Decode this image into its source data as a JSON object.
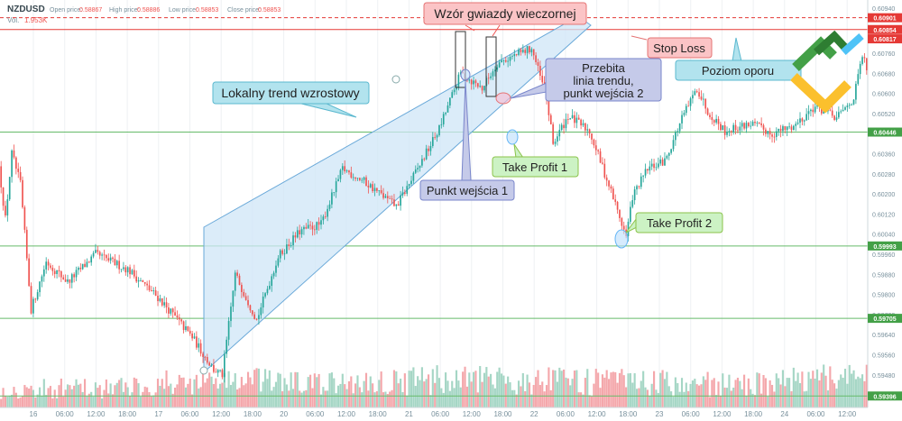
{
  "header": {
    "symbol": "NZDUSD",
    "open_label": "Open price:",
    "open_value": "0.58867",
    "high_label": "High price:",
    "high_value": "0.58886",
    "low_label": "Low price:",
    "low_value": "0.58853",
    "close_label": "Close price:",
    "close_value": "0.58853",
    "vol_label": "Vol.",
    "vol_value": "1.953K"
  },
  "colors": {
    "bull": "#26a69a",
    "bear": "#ef5350",
    "vol_bull": "#a5d6c5",
    "vol_bear": "#f4a7ab",
    "level_line": "#66bb6a",
    "level_tag": "#43a047",
    "stop_line": "#e53935",
    "stop_tag": "#e53935",
    "channel_fill": "#cfe6f7",
    "channel_stroke": "#6aa9d9"
  },
  "chart_data": {
    "type": "candlestick",
    "symbol": "NZDUSD",
    "ylim": [
      0.59336,
      0.6095
    ],
    "y_ticks": [
      "0.60940",
      "0.60847",
      "0.60760",
      "0.60680",
      "0.60600",
      "0.60520",
      "0.60440",
      "0.60360",
      "0.60280",
      "0.60200",
      "0.60120",
      "0.60040",
      "0.59960",
      "0.59880",
      "0.59800",
      "0.59720",
      "0.59640",
      "0.59560",
      "0.59480",
      "0.59400"
    ],
    "x_ticks": [
      "16",
      "06:00",
      "12:00",
      "18:00",
      "17",
      "06:00",
      "12:00",
      "18:00",
      "20",
      "06:00",
      "12:00",
      "18:00",
      "21",
      "06:00",
      "12:00",
      "18:00",
      "22",
      "06:00",
      "12:00",
      "18:00",
      "23",
      "06:00",
      "12:00",
      "18:00",
      "24",
      "06:00",
      "12:00"
    ],
    "price_levels": [
      {
        "value": "0.60901",
        "kind": "stop"
      },
      {
        "value": "0.60854",
        "kind": "stop"
      },
      {
        "value": "0.60817",
        "kind": "tag"
      },
      {
        "value": "0.60446",
        "kind": "support"
      },
      {
        "value": "0.59993",
        "kind": "support"
      },
      {
        "value": "0.59705",
        "kind": "support"
      },
      {
        "value": "0.59396",
        "kind": "support"
      }
    ],
    "price_path": [
      {
        "t": 0,
        "p": 0.6031
      },
      {
        "t": 3,
        "p": 0.601
      },
      {
        "t": 6,
        "p": 0.6036
      },
      {
        "t": 10,
        "p": 0.6024
      },
      {
        "t": 15,
        "p": 0.5974
      },
      {
        "t": 22,
        "p": 0.5993
      },
      {
        "t": 32,
        "p": 0.5985
      },
      {
        "t": 45,
        "p": 0.5996
      },
      {
        "t": 60,
        "p": 0.599
      },
      {
        "t": 75,
        "p": 0.5978
      },
      {
        "t": 90,
        "p": 0.5963
      },
      {
        "t": 100,
        "p": 0.595
      },
      {
        "t": 104,
        "p": 0.5948
      },
      {
        "t": 110,
        "p": 0.5988
      },
      {
        "t": 120,
        "p": 0.597
      },
      {
        "t": 130,
        "p": 0.5995
      },
      {
        "t": 140,
        "p": 0.6005
      },
      {
        "t": 150,
        "p": 0.6008
      },
      {
        "t": 160,
        "p": 0.603
      },
      {
        "t": 170,
        "p": 0.6025
      },
      {
        "t": 185,
        "p": 0.6015
      },
      {
        "t": 195,
        "p": 0.603
      },
      {
        "t": 205,
        "p": 0.6046
      },
      {
        "t": 215,
        "p": 0.6068
      },
      {
        "t": 225,
        "p": 0.6062
      },
      {
        "t": 232,
        "p": 0.6072
      },
      {
        "t": 240,
        "p": 0.6075
      },
      {
        "t": 248,
        "p": 0.6078
      },
      {
        "t": 255,
        "p": 0.6058
      },
      {
        "t": 258,
        "p": 0.604
      },
      {
        "t": 265,
        "p": 0.6051
      },
      {
        "t": 275,
        "p": 0.6045
      },
      {
        "t": 285,
        "p": 0.6021
      },
      {
        "t": 292,
        "p": 0.6003
      },
      {
        "t": 295,
        "p": 0.6019
      },
      {
        "t": 302,
        "p": 0.603
      },
      {
        "t": 310,
        "p": 0.6033
      },
      {
        "t": 318,
        "p": 0.605
      },
      {
        "t": 325,
        "p": 0.6062
      },
      {
        "t": 330,
        "p": 0.6053
      },
      {
        "t": 338,
        "p": 0.6045
      },
      {
        "t": 350,
        "p": 0.6048
      },
      {
        "t": 360,
        "p": 0.6044
      },
      {
        "t": 370,
        "p": 0.6047
      },
      {
        "t": 380,
        "p": 0.6055
      },
      {
        "t": 390,
        "p": 0.605
      },
      {
        "t": 398,
        "p": 0.6058
      },
      {
        "t": 402,
        "p": 0.6075
      },
      {
        "t": 404,
        "p": 0.607
      }
    ],
    "volume_profile": [
      {
        "t": 0,
        "v": 0.55
      },
      {
        "t": 50,
        "v": 0.6
      },
      {
        "t": 100,
        "v": 0.85
      },
      {
        "t": 150,
        "v": 0.7
      },
      {
        "t": 200,
        "v": 0.85
      },
      {
        "t": 250,
        "v": 0.8
      },
      {
        "t": 300,
        "v": 0.75
      },
      {
        "t": 350,
        "v": 0.7
      },
      {
        "t": 400,
        "v": 0.95
      }
    ]
  },
  "annotations": {
    "evening_star": "Wzór gwiazdy wieczornej",
    "stop_loss": "Stop Loss",
    "resistance": "Poziom oporu",
    "local_uptrend": "Lokalny trend wzrostowy",
    "trendline_break": [
      "Przebita",
      "linia trendu,",
      "punkt wejścia 2"
    ],
    "entry_1": "Punkt wejścia 1",
    "take_profit_1": "Take Profit 1",
    "take_profit_2": "Take Profit 2"
  }
}
